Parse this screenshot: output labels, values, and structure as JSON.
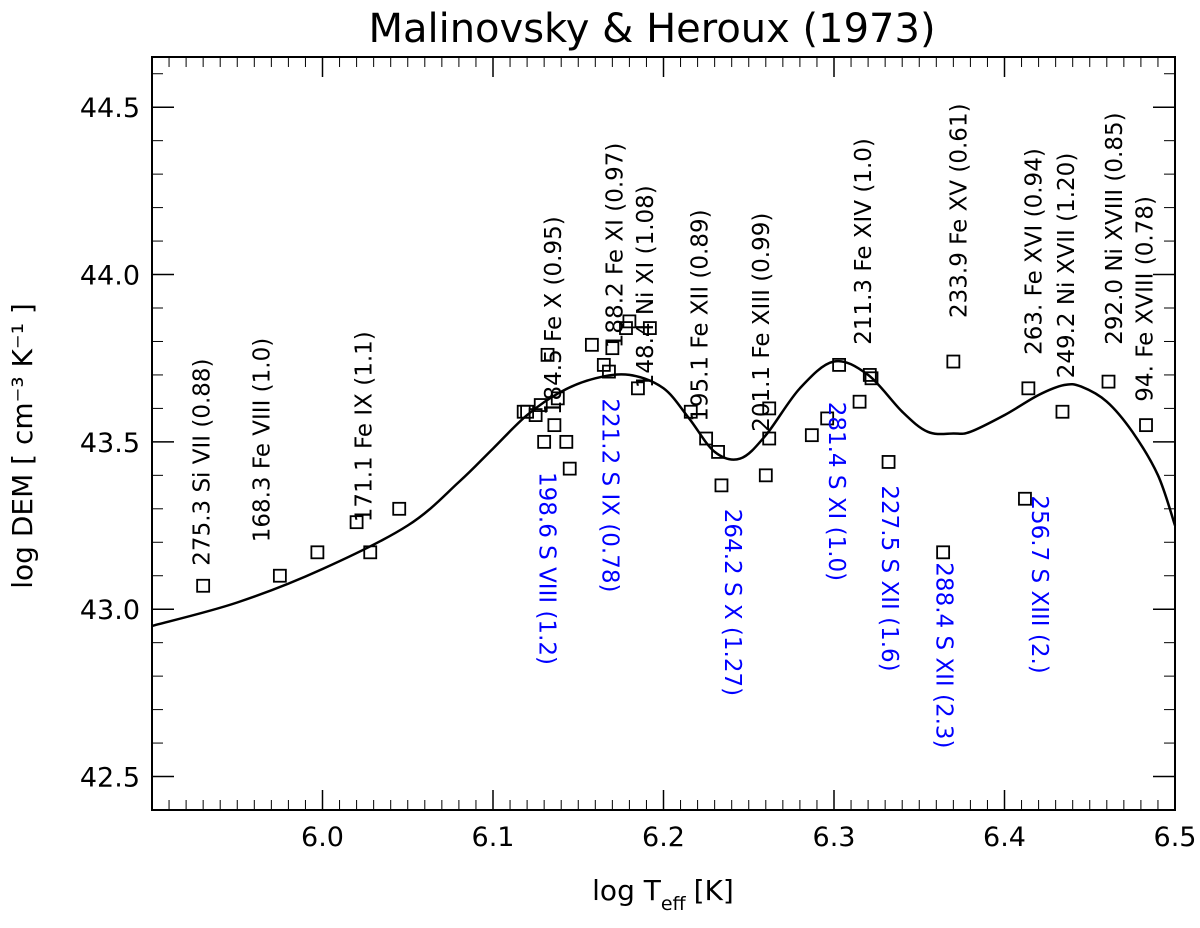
{
  "chart_data": {
    "type": "scatter",
    "title": "Malinovsky & Heroux (1973)",
    "xlabel": {
      "main": "log T",
      "sub": "eff",
      "unit": "[K]"
    },
    "ylabel": "log DEM [ cm⁻³ K⁻¹ ]",
    "xlim": [
      5.9,
      6.5
    ],
    "ylim": [
      42.4,
      44.65
    ],
    "xticks": [
      6.0,
      6.1,
      6.2,
      6.3,
      6.4,
      6.5
    ],
    "xtick_labels": [
      "6.0",
      "6.1",
      "6.2",
      "6.3",
      "6.4",
      "6.5"
    ],
    "yticks": [
      42.5,
      43.0,
      43.5,
      44.0,
      44.5
    ],
    "ytick_labels": [
      "42.5",
      "43.0",
      "43.5",
      "44.0",
      "44.5"
    ],
    "grid": false,
    "series": [
      {
        "name": "DEM curve",
        "kind": "line",
        "points": [
          [
            5.9,
            42.95
          ],
          [
            5.95,
            43.02
          ],
          [
            6.0,
            43.12
          ],
          [
            6.05,
            43.25
          ],
          [
            6.08,
            43.38
          ],
          [
            6.1,
            43.48
          ],
          [
            6.12,
            43.58
          ],
          [
            6.14,
            43.65
          ],
          [
            6.16,
            43.69
          ],
          [
            6.18,
            43.7
          ],
          [
            6.2,
            43.66
          ],
          [
            6.215,
            43.57
          ],
          [
            6.23,
            43.47
          ],
          [
            6.245,
            43.45
          ],
          [
            6.26,
            43.52
          ],
          [
            6.28,
            43.66
          ],
          [
            6.3,
            43.74
          ],
          [
            6.32,
            43.7
          ],
          [
            6.34,
            43.59
          ],
          [
            6.355,
            43.53
          ],
          [
            6.37,
            43.525
          ],
          [
            6.38,
            43.53
          ],
          [
            6.4,
            43.58
          ],
          [
            6.42,
            43.64
          ],
          [
            6.435,
            43.67
          ],
          [
            6.445,
            43.665
          ],
          [
            6.46,
            43.62
          ],
          [
            6.475,
            43.53
          ],
          [
            6.49,
            43.4
          ],
          [
            6.5,
            43.25
          ]
        ]
      },
      {
        "name": "Line ratio points",
        "kind": "marker",
        "marker": "open-square",
        "points": [
          [
            5.93,
            43.07
          ],
          [
            5.975,
            43.1
          ],
          [
            5.997,
            43.17
          ],
          [
            6.02,
            43.26
          ],
          [
            6.028,
            43.17
          ],
          [
            6.045,
            43.3
          ],
          [
            6.118,
            43.59
          ],
          [
            6.12,
            43.59
          ],
          [
            6.125,
            43.58
          ],
          [
            6.128,
            43.61
          ],
          [
            6.13,
            43.5
          ],
          [
            6.132,
            43.76
          ],
          [
            6.136,
            43.55
          ],
          [
            6.138,
            43.63
          ],
          [
            6.143,
            43.5
          ],
          [
            6.145,
            43.42
          ],
          [
            6.158,
            43.79
          ],
          [
            6.165,
            43.73
          ],
          [
            6.168,
            43.71
          ],
          [
            6.17,
            43.78
          ],
          [
            6.178,
            43.84
          ],
          [
            6.18,
            43.86
          ],
          [
            6.185,
            43.66
          ],
          [
            6.192,
            43.84
          ],
          [
            6.216,
            43.59
          ],
          [
            6.225,
            43.51
          ],
          [
            6.232,
            43.47
          ],
          [
            6.234,
            43.37
          ],
          [
            6.26,
            43.4
          ],
          [
            6.262,
            43.6
          ],
          [
            6.262,
            43.51
          ],
          [
            6.287,
            43.52
          ],
          [
            6.296,
            43.57
          ],
          [
            6.303,
            43.73
          ],
          [
            6.315,
            43.62
          ],
          [
            6.321,
            43.7
          ],
          [
            6.322,
            43.69
          ],
          [
            6.332,
            43.44
          ],
          [
            6.364,
            43.17
          ],
          [
            6.37,
            43.74
          ],
          [
            6.412,
            43.33
          ],
          [
            6.414,
            43.66
          ],
          [
            6.434,
            43.59
          ],
          [
            6.461,
            43.68
          ],
          [
            6.483,
            43.55
          ]
        ]
      }
    ],
    "annotations": [
      {
        "text": "275.3 Si VII (0.88)",
        "x": 5.93,
        "y": 43.13,
        "color": "black"
      },
      {
        "text": "168.3 Fe VIII  (1.0)",
        "x": 5.965,
        "y": 43.2,
        "color": "black"
      },
      {
        "text": "171.1 Fe IX (1.1)",
        "x": 6.025,
        "y": 43.26,
        "color": "black"
      },
      {
        "text": "184.5   Fe X (0.95)",
        "x": 6.136,
        "y": 43.58,
        "color": "black"
      },
      {
        "text": "188.2 Fe XI (0.97)",
        "x": 6.172,
        "y": 43.78,
        "color": "black"
      },
      {
        "text": "148.4 Ni XI (1.08)",
        "x": 6.19,
        "y": 43.66,
        "color": "black"
      },
      {
        "text": "195.1 Fe XII (0.89)",
        "x": 6.222,
        "y": 43.56,
        "color": "black"
      },
      {
        "text": "201.1 Fe XIII (0.99)",
        "x": 6.258,
        "y": 43.53,
        "color": "black"
      },
      {
        "text": "211.3 Fe XIV (1.0)",
        "x": 6.318,
        "y": 43.79,
        "color": "black"
      },
      {
        "text": "233.9 Fe XV (0.61)",
        "x": 6.374,
        "y": 43.87,
        "color": "black"
      },
      {
        "text": "263. Fe XVI (0.94)",
        "x": 6.418,
        "y": 43.76,
        "color": "black"
      },
      {
        "text": "249.2 Ni XVII (1.20)",
        "x": 6.437,
        "y": 43.69,
        "color": "black"
      },
      {
        "text": "292.0 Ni XVIII (0.85)",
        "x": 6.465,
        "y": 43.79,
        "color": "black"
      },
      {
        "text": "94. Fe XVIII (0.78)",
        "x": 6.483,
        "y": 43.62,
        "color": "black"
      },
      {
        "text": "198.6 S VIII (1.2)",
        "x": 6.131,
        "y": 43.41,
        "color": "blue"
      },
      {
        "text": "221.2 S IX (0.78)",
        "x": 6.168,
        "y": 43.63,
        "color": "blue"
      },
      {
        "text": "264.2 S X (1.27)",
        "x": 6.24,
        "y": 43.3,
        "color": "blue"
      },
      {
        "text": "281.4 S XI (1.0)",
        "x": 6.301,
        "y": 43.62,
        "color": "blue"
      },
      {
        "text": "227.5 S XII (1.6)",
        "x": 6.332,
        "y": 43.37,
        "color": "blue"
      },
      {
        "text": "288.4 S XII (2.3)",
        "x": 6.364,
        "y": 43.14,
        "color": "blue"
      },
      {
        "text": "256.7 S XIII (2.)",
        "x": 6.42,
        "y": 43.34,
        "color": "blue"
      }
    ]
  }
}
